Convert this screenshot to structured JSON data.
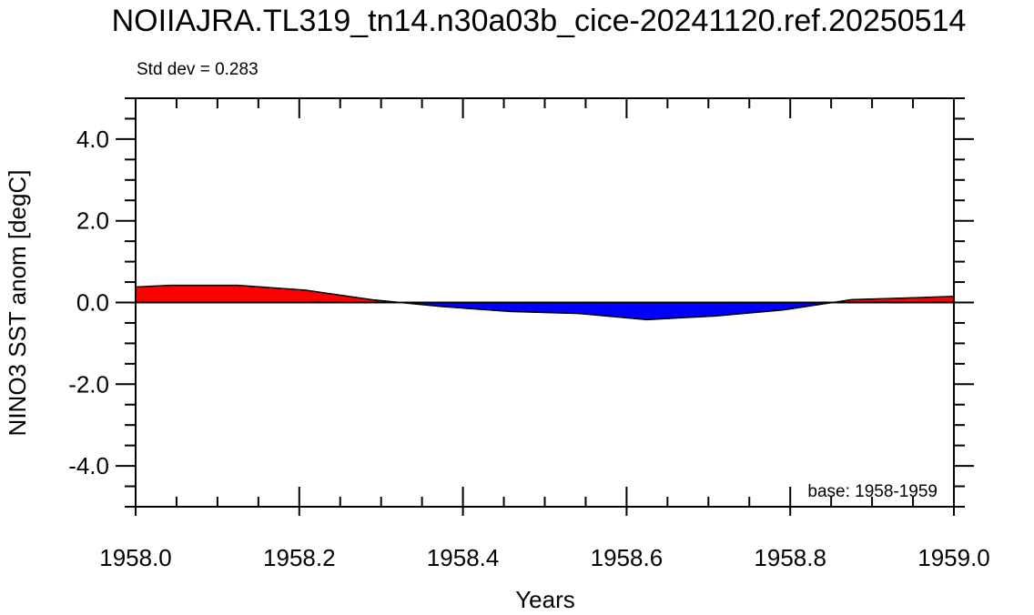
{
  "chart_data": {
    "type": "area",
    "title": "NOIIAJRA.TL319_tn14.n30a03b_cice-20241120.ref.20250514",
    "xlabel": "Years",
    "ylabel": "NINO3 SST anom [degC]",
    "xlim": [
      1958.0,
      1959.0
    ],
    "ylim": [
      -5.0,
      5.0
    ],
    "x_ticks": [
      "1958.0",
      "1958.2",
      "1958.4",
      "1958.6",
      "1958.8",
      "1959.0"
    ],
    "y_ticks": [
      "4.0",
      "2.0",
      "0.0",
      "-2.0",
      "-4.0"
    ],
    "annotations": {
      "std_dev": "Std dev = 0.283",
      "base": "base: 1958-1959"
    },
    "fill_colors": {
      "positive": "#ff0000",
      "negative": "#0000ff"
    },
    "grid": false,
    "series": [
      {
        "x": [
          1958.0,
          1958.042,
          1958.125,
          1958.208,
          1958.292,
          1958.375,
          1958.458,
          1958.542,
          1958.625,
          1958.708,
          1958.792,
          1958.875,
          1958.958,
          1959.0
        ],
        "values": [
          0.38,
          0.42,
          0.42,
          0.3,
          0.06,
          -0.1,
          -0.22,
          -0.27,
          -0.42,
          -0.33,
          -0.18,
          0.07,
          0.12,
          0.15
        ]
      }
    ]
  }
}
